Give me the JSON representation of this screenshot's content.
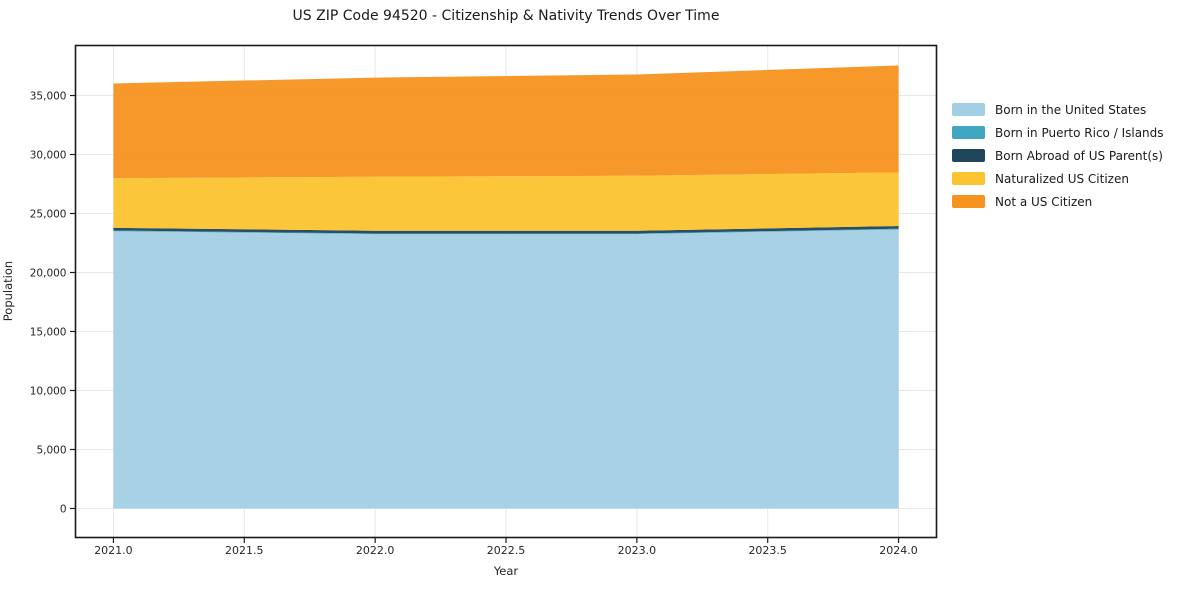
{
  "figure": {
    "title": "US ZIP Code 94520 - Citizenship & Nativity Trends Over Time",
    "xlabel": "Year",
    "ylabel": "Population"
  },
  "chart_data": {
    "type": "area",
    "stacked": true,
    "title": "US ZIP Code 94520 - Citizenship & Nativity Trends Over Time",
    "xlabel": "Year",
    "ylabel": "Population",
    "x": [
      2021,
      2022,
      2023,
      2024
    ],
    "series": [
      {
        "name": "Born in the United States",
        "color": "#a3cfe4",
        "values": [
          23500,
          23250,
          23250,
          23650
        ]
      },
      {
        "name": "Born in Puerto Rico / Islands",
        "color": "#41a6c2",
        "values": [
          60,
          60,
          60,
          60
        ]
      },
      {
        "name": "Born Abroad of US Parent(s)",
        "color": "#1f455a",
        "values": [
          230,
          230,
          230,
          230
        ]
      },
      {
        "name": "Naturalized US Citizen",
        "color": "#fcc330",
        "values": [
          4200,
          4580,
          4660,
          4540
        ]
      },
      {
        "name": "Not a US Citizen",
        "color": "#f7941f",
        "values": [
          8030,
          8400,
          8580,
          9070
        ]
      }
    ],
    "totals": [
      36020,
      36520,
      36780,
      37550
    ],
    "x_tick_values": [
      2021.0,
      2021.5,
      2022.0,
      2022.5,
      2023.0,
      2023.5,
      2024.0
    ],
    "x_tick_labels": [
      "2021.0",
      "2021.5",
      "2022.0",
      "2022.5",
      "2023.0",
      "2023.5",
      "2024.0"
    ],
    "y_tick_values": [
      0,
      5000,
      10000,
      15000,
      20000,
      25000,
      30000,
      35000
    ],
    "y_tick_labels": [
      "0",
      "5,000",
      "10,000",
      "15,000",
      "20,000",
      "25,000",
      "30,000",
      "35,000"
    ],
    "xlim": [
      2020.855,
      2024.145
    ],
    "ylim": [
      -2460,
      39240
    ],
    "grid": true,
    "legend_position": "right",
    "legend_frame": false
  },
  "colors": {
    "spine": "#1a1a1a",
    "grid": "#e7e7e7",
    "tick_label": "#262626"
  }
}
